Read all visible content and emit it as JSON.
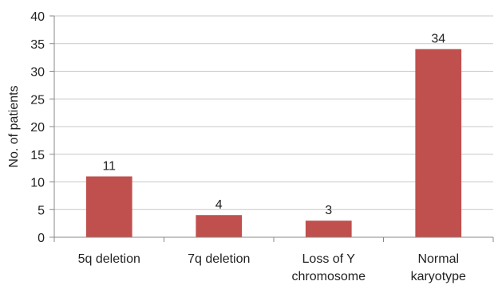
{
  "chart_data": {
    "type": "bar",
    "title": "",
    "xlabel": "",
    "ylabel": "No. of patients",
    "categories": [
      [
        "5q deletion"
      ],
      [
        "7q deletion"
      ],
      [
        "Loss of Y",
        "chromosome"
      ],
      [
        "Normal",
        "karyotype"
      ]
    ],
    "values": [
      11,
      4,
      3,
      34
    ],
    "data_labels": [
      "11",
      "4",
      "3",
      "34"
    ],
    "ylim": [
      0,
      40
    ],
    "yticks": [
      0,
      5,
      10,
      15,
      20,
      25,
      30,
      35,
      40
    ],
    "grid": true,
    "legend": "none",
    "colors": {
      "bar": "#c0504d",
      "grid": "#c8c8c8",
      "axis": "#888888"
    }
  }
}
